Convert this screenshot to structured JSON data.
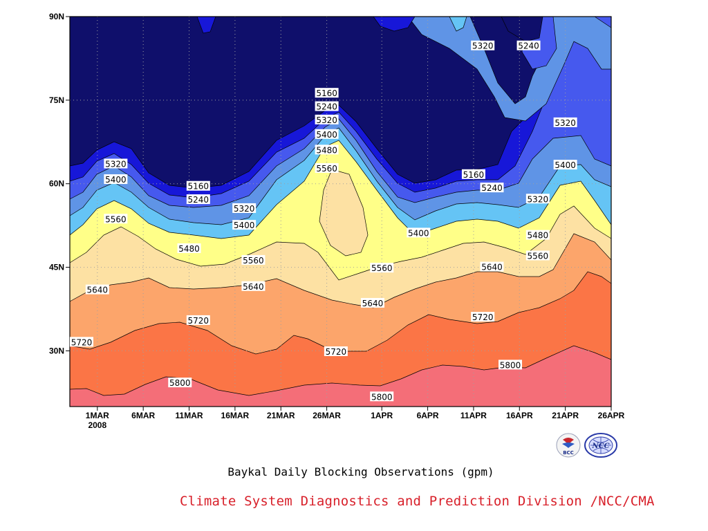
{
  "chart_data": {
    "type": "contour",
    "title": "Baykal Daily Blocking Observations (gpm)",
    "x_ticks": [
      "1MAR",
      "6MAR",
      "11MAR",
      "16MAR",
      "21MAR",
      "26MAR",
      "1APR",
      "6APR",
      "11APR",
      "16APR",
      "21APR",
      "26APR"
    ],
    "x_year_label": "2008",
    "y_ticks": [
      "30N",
      "45N",
      "60N",
      "75N",
      "90N"
    ],
    "x_range": [
      "2008-02-27",
      "2008-04-26"
    ],
    "y_range": [
      20,
      90
    ],
    "grid": true,
    "contour_levels": [
      5160,
      5240,
      5320,
      5400,
      5480,
      5560,
      5640,
      5720,
      5800
    ],
    "contour_labels": [
      {
        "value": "5160",
        "day": "2008-03-26",
        "lat": 76.2
      },
      {
        "value": "5240",
        "day": "2008-03-26",
        "lat": 73.8
      },
      {
        "value": "5320",
        "day": "2008-03-26",
        "lat": 71.4
      },
      {
        "value": "5400",
        "day": "2008-03-26",
        "lat": 68.8
      },
      {
        "value": "5480",
        "day": "2008-03-26",
        "lat": 66.0
      },
      {
        "value": "5560",
        "day": "2008-03-26",
        "lat": 62.7
      },
      {
        "value": "5320",
        "day": "2008-03-03",
        "lat": 63.5
      },
      {
        "value": "5400",
        "day": "2008-03-03",
        "lat": 60.7
      },
      {
        "value": "5560",
        "day": "2008-03-03",
        "lat": 53.6
      },
      {
        "value": "5160",
        "day": "2008-03-12",
        "lat": 59.5
      },
      {
        "value": "5240",
        "day": "2008-03-12",
        "lat": 57.1
      },
      {
        "value": "5320",
        "day": "2008-03-17",
        "lat": 55.5
      },
      {
        "value": "5400",
        "day": "2008-03-17",
        "lat": 52.5
      },
      {
        "value": "5480",
        "day": "2008-03-11",
        "lat": 48.3
      },
      {
        "value": "5560",
        "day": "2008-03-18",
        "lat": 46.2
      },
      {
        "value": "5640",
        "day": "2008-03-01",
        "lat": 40.9
      },
      {
        "value": "5640",
        "day": "2008-03-18",
        "lat": 41.5
      },
      {
        "value": "5720",
        "day": "2008-02-27",
        "lat": 31.5
      },
      {
        "value": "5720",
        "day": "2008-03-12",
        "lat": 35.4
      },
      {
        "value": "5800",
        "day": "2008-03-10",
        "lat": 24.2
      },
      {
        "value": "5720",
        "day": "2008-03-27",
        "lat": 29.8
      },
      {
        "value": "5800",
        "day": "2008-04-01",
        "lat": 21.7
      },
      {
        "value": "5640",
        "day": "2008-03-31",
        "lat": 38.5
      },
      {
        "value": "5560",
        "day": "2008-04-01",
        "lat": 44.8
      },
      {
        "value": "5400",
        "day": "2008-04-05",
        "lat": 51.1
      },
      {
        "value": "5160",
        "day": "2008-04-11",
        "lat": 61.6
      },
      {
        "value": "5240",
        "day": "2008-04-13",
        "lat": 59.2
      },
      {
        "value": "5320",
        "day": "2008-04-18",
        "lat": 57.2
      },
      {
        "value": "5480",
        "day": "2008-04-18",
        "lat": 50.7
      },
      {
        "value": "5560",
        "day": "2008-04-18",
        "lat": 47.0
      },
      {
        "value": "5640",
        "day": "2008-04-13",
        "lat": 45.0
      },
      {
        "value": "5720",
        "day": "2008-04-12",
        "lat": 36.0
      },
      {
        "value": "5800",
        "day": "2008-04-15",
        "lat": 27.4
      },
      {
        "value": "5320",
        "day": "2008-04-12",
        "lat": 84.7
      },
      {
        "value": "5240",
        "day": "2008-04-17",
        "lat": 84.7
      },
      {
        "value": "5320",
        "day": "2008-04-21",
        "lat": 70.9
      },
      {
        "value": "5400",
        "day": "2008-04-21",
        "lat": 63.3
      }
    ],
    "colors": {
      "below_5160": "#0f0f6b",
      "5160": "#1717d8",
      "5240": "#4659ee",
      "5320": "#5f94e6",
      "5400": "#65c4f5",
      "5480": "#ffff88",
      "5560": "#fde1a3",
      "5640": "#fca56b",
      "5720": "#fb7546",
      "5800": "#f46e78"
    }
  },
  "footer": {
    "credit": "Climate System Diagnostics and Prediction Division /NCC/CMA",
    "logo_bcc_label": "BCC",
    "logo_ncc_label": "NCC"
  }
}
